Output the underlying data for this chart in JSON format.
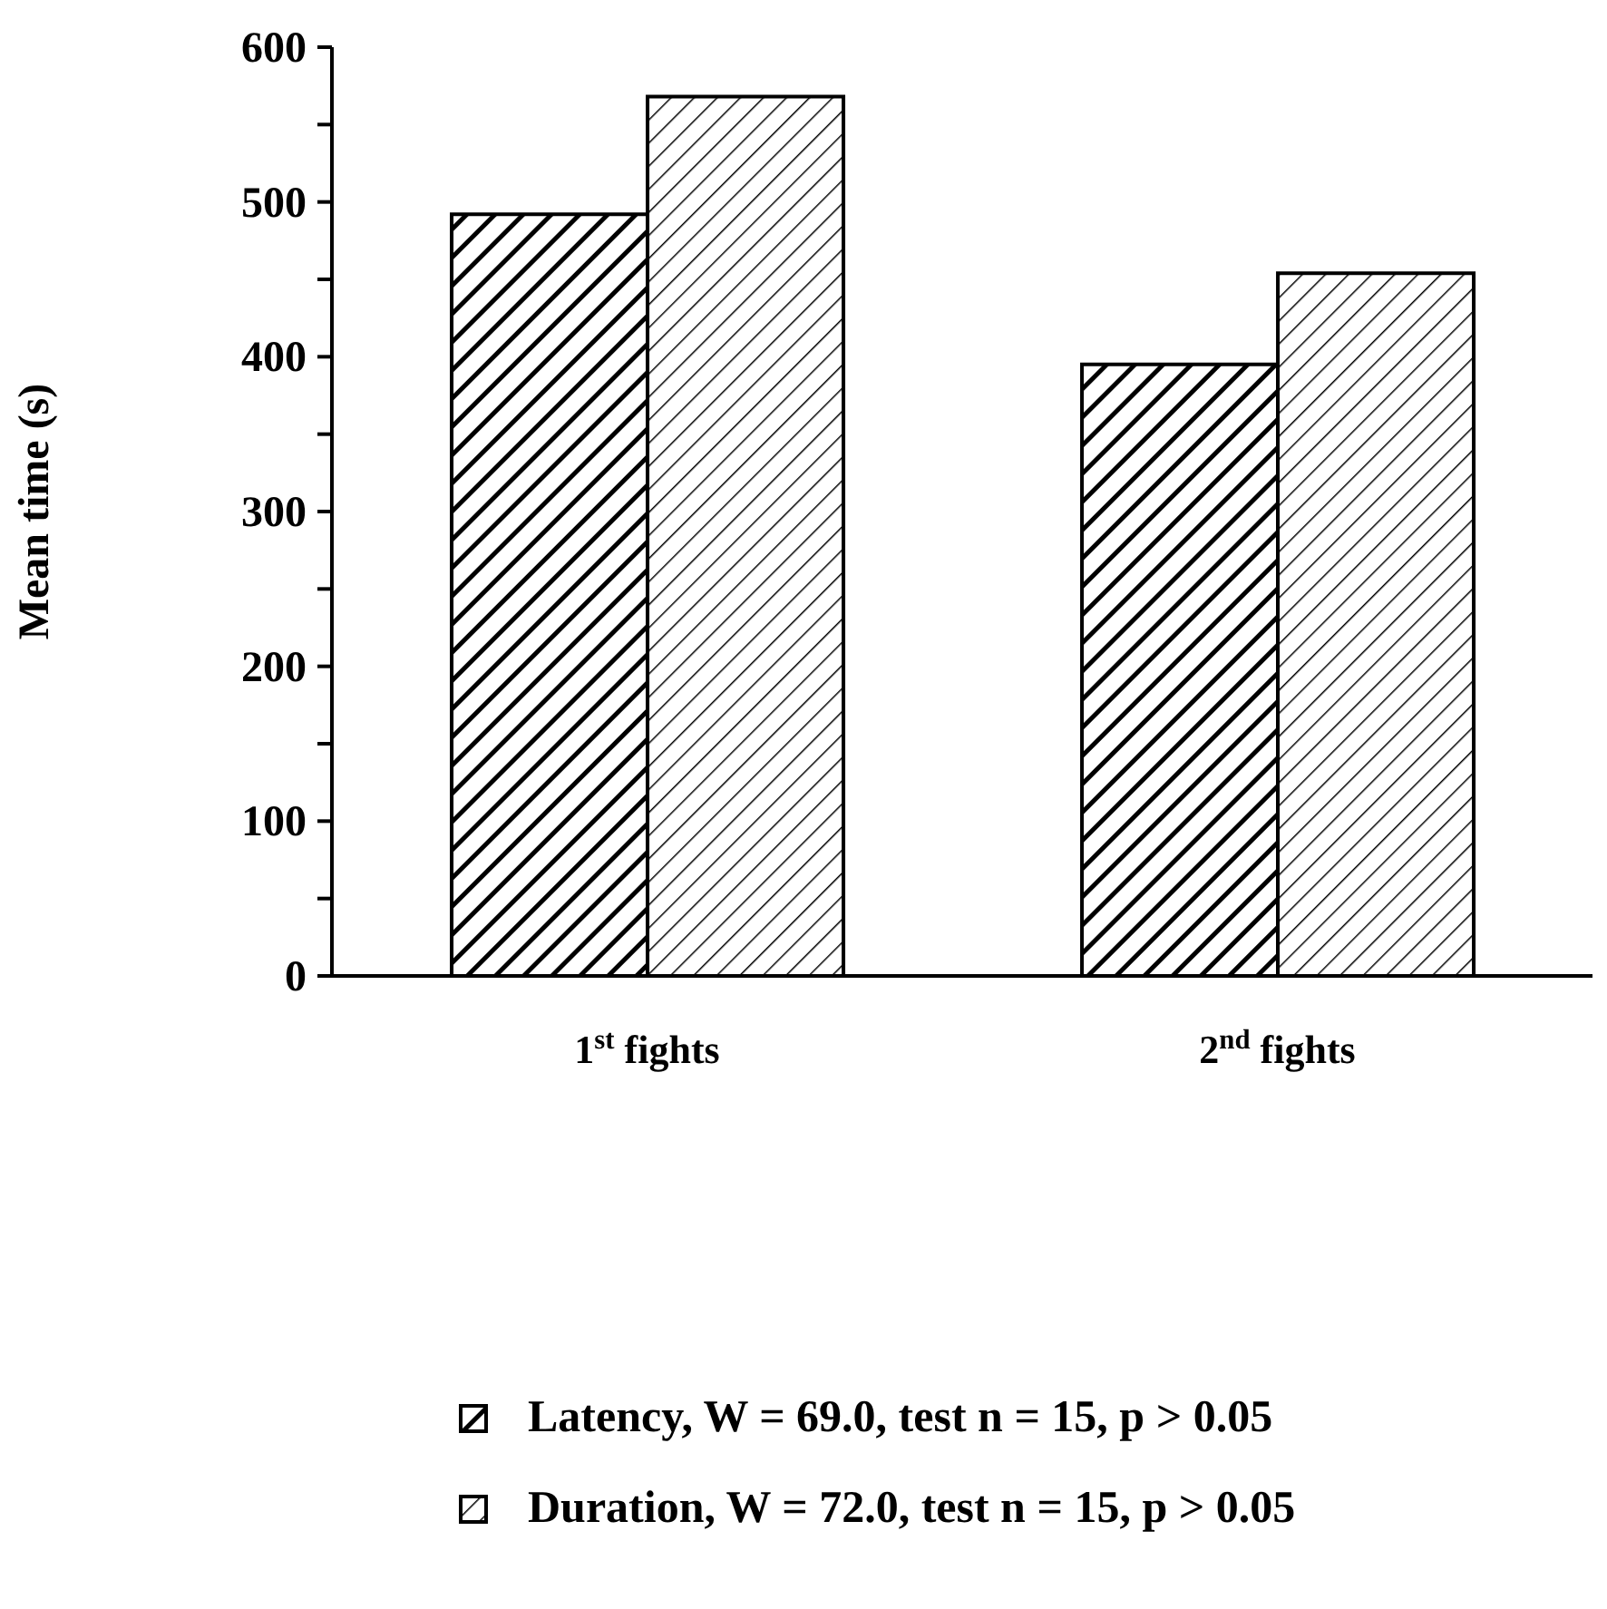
{
  "chart_data": {
    "type": "bar",
    "ylabel": "Mean time (s)",
    "categories": [
      "1$^{st}$ fights",
      "2$^{nd}$ fights"
    ],
    "series": [
      {
        "name": "Latency, W = 69.0, test n = 15, p > 0.05",
        "color": "#000000",
        "values": [
          492,
          395
        ]
      },
      {
        "name": "Duration, W = 72.0, test n = 15, p > 0.05",
        "color": "#000000",
        "values": [
          568,
          454
        ]
      }
    ],
    "ylim": [
      0,
      600
    ],
    "yticks": [
      0,
      {
        "value": 50,
        "label": null
      },
      100,
      {
        "value": 150,
        "label": null
      },
      200,
      {
        "value": 250,
        "label": null
      },
      300,
      {
        "value": 350,
        "label": null
      },
      400,
      {
        "value": 450,
        "label": null
      },
      500,
      {
        "value": 550,
        "label": null
      },
      600
    ],
    "grid": false,
    "legend": "bottom"
  }
}
